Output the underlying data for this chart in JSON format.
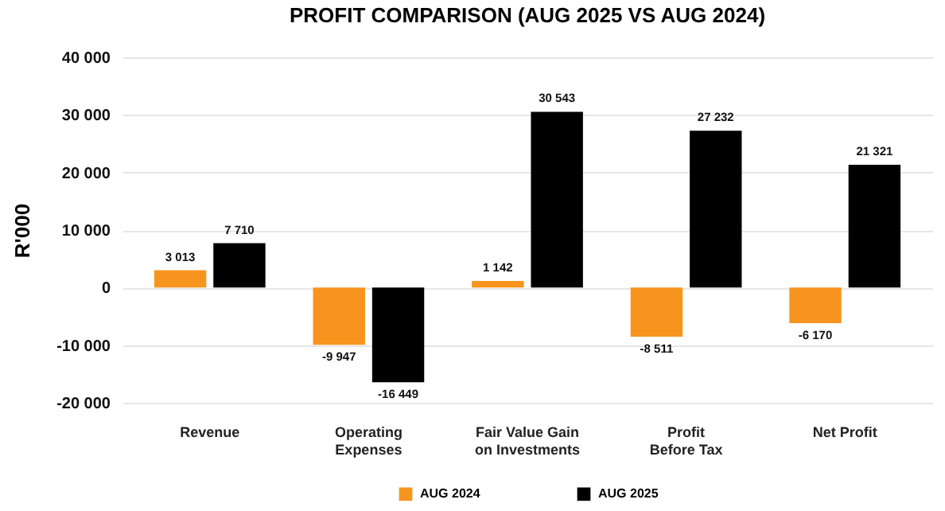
{
  "chart_data": {
    "type": "bar",
    "title": "PROFIT COMPARISON (AUG 2025 VS AUG 2024)",
    "ylabel": "R'000",
    "categories": [
      "Revenue",
      "Operating Expenses",
      "Fair Value Gain on Investments",
      "Profit Before Tax",
      "Net Profit"
    ],
    "series": [
      {
        "name": "AUG 2024",
        "color": "#f7941d",
        "values": [
          3013,
          -9947,
          1142,
          -8511,
          -6170
        ],
        "value_labels": [
          "3 013",
          "-9 947",
          "1 142",
          "-8 511",
          "-6 170"
        ]
      },
      {
        "name": "AUG 2025",
        "color": "#000000",
        "values": [
          7710,
          -16449,
          30543,
          27232,
          21321
        ],
        "value_labels": [
          "7 710",
          "-16 449",
          "30 543",
          "27 232",
          "21 321"
        ]
      }
    ],
    "ylim": [
      -20000,
      40000
    ],
    "yticks": [
      {
        "value": -20000,
        "label": "-20 000"
      },
      {
        "value": -10000,
        "label": "-10 000"
      },
      0,
      {
        "value": 10000,
        "label": "10 000"
      },
      {
        "value": 20000,
        "label": "20 000"
      },
      {
        "value": 30000,
        "label": "30 000"
      },
      {
        "value": 40000,
        "label": "40 000"
      }
    ],
    "grid": "y",
    "legend": "bottom"
  }
}
